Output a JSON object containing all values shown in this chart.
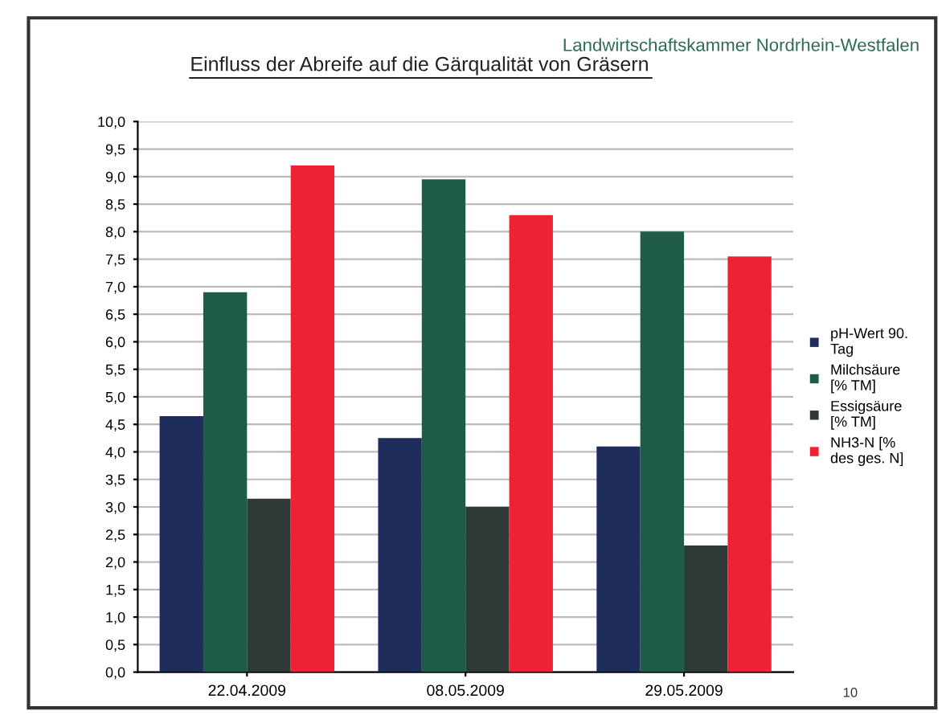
{
  "chart_data": {
    "type": "bar",
    "title": "Einfluss der Abreife auf die Gärqualität von Gräsern",
    "categories": [
      "22.04.2009",
      "08.05.2009",
      "29.05.2009"
    ],
    "series": [
      {
        "name": "pH-Wert 90. Tag",
        "color": "#1f2d5c",
        "values": [
          4.65,
          4.25,
          4.1
        ]
      },
      {
        "name": "Milchsäure [% TM]",
        "color": "#1e5c45",
        "values": [
          6.9,
          8.95,
          8.0
        ]
      },
      {
        "name": "Essigsäure [% TM]",
        "color": "#2f3a38",
        "values": [
          3.15,
          3.0,
          2.3
        ]
      },
      {
        "name": "NH3-N [% des ges. N]",
        "color": "#ee2233",
        "values": [
          9.2,
          8.3,
          7.55
        ]
      }
    ],
    "ylim": [
      0,
      10
    ],
    "yticks": [
      {
        "value": 0,
        "label": "0,0"
      },
      {
        "value": 0.5,
        "label": "0,5"
      },
      {
        "value": 1,
        "label": "1,0"
      },
      {
        "value": 1.5,
        "label": "1,5"
      },
      {
        "value": 2,
        "label": "2,0"
      },
      {
        "value": 2.5,
        "label": "2,5"
      },
      {
        "value": 3,
        "label": "3,0"
      },
      {
        "value": 3.5,
        "label": "3,5"
      },
      {
        "value": 4,
        "label": "4,0"
      },
      {
        "value": 4.5,
        "label": "4,5"
      },
      {
        "value": 5,
        "label": "5,0"
      },
      {
        "value": 5.5,
        "label": "5,5"
      },
      {
        "value": 6,
        "label": "6,0"
      },
      {
        "value": 6.5,
        "label": "6,5"
      },
      {
        "value": 7,
        "label": "7,0"
      },
      {
        "value": 7.5,
        "label": "7,5"
      },
      {
        "value": 8,
        "label": "8,0"
      },
      {
        "value": 8.5,
        "label": "8,5"
      },
      {
        "value": 9,
        "label": "9,0"
      },
      {
        "value": 9.5,
        "label": "9,5"
      },
      {
        "value": 10,
        "label": "10,0"
      }
    ],
    "grid": "y",
    "legend": "right",
    "annotations": [
      "Landwirtschaftskammer Nordrhein-Westfalen",
      "10"
    ]
  }
}
